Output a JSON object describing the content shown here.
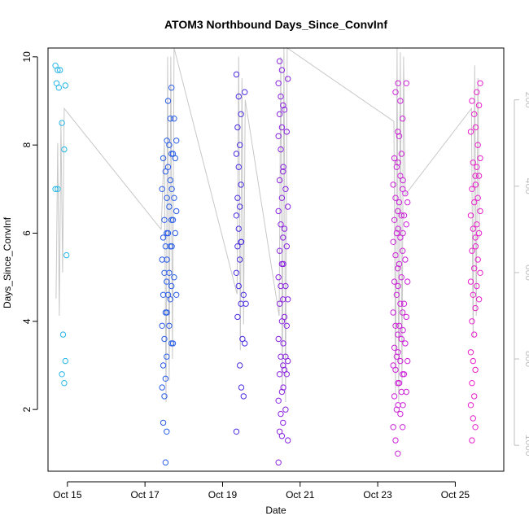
{
  "chart_data": {
    "type": "scatter",
    "title": "ATOM3 Northbound Days_Since_ConvInf",
    "xlabel": "Date",
    "ylabel": "Days_Since_ConvInf",
    "x_ticks": [
      "Oct 15",
      "Oct 17",
      "Oct 19",
      "Oct 21",
      "Oct 23",
      "Oct 25"
    ],
    "y_ticks": [
      2,
      4,
      6,
      8,
      10
    ],
    "y2_ticks": [
      200,
      400,
      600,
      800,
      1000
    ],
    "xlim": [
      "2019-10-14T12:00",
      "2019-10-26T06:00"
    ],
    "ylim": [
      0.6,
      10.2
    ],
    "y2lim": [
      80,
      1060
    ],
    "y2_reversed": true,
    "grid": false,
    "point_colors": {
      "Oct 14-15": "#29b6e8",
      "Oct 17-18": "#2a5de8",
      "Oct 19": "#4a2de0",
      "Oct 20-21": "#8a22e0",
      "Oct 23-24": "#cc22d8",
      "Oct 25-26": "#e822cc"
    },
    "line_color": "#c8c8c8",
    "series": [
      {
        "x": "2019-10-14T18:00",
        "y": [
          9.8,
          9.7,
          9.7,
          9.4,
          9.3,
          7.0,
          7.0
        ]
      },
      {
        "x": "2019-10-14T22:00",
        "y": [
          9.35,
          8.5,
          7.9,
          5.5,
          3.7,
          3.1,
          2.8,
          2.6
        ]
      },
      {
        "x": "2019-10-17T12:00",
        "y": [
          7.7,
          7.4,
          7.0,
          6.3,
          6.0,
          5.9,
          5.7,
          5.4,
          5.1,
          4.9,
          4.6,
          4.2,
          3.9,
          3.6,
          3.2,
          3.0,
          2.7,
          2.5,
          2.3,
          1.5,
          1.7,
          0.8
        ]
      },
      {
        "x": "2019-10-17T15:00",
        "y": [
          9.3,
          9.0,
          8.6,
          8.1,
          8.0,
          7.8,
          7.5,
          7.2,
          6.8,
          6.6,
          6.3,
          6.0,
          5.7,
          5.4,
          5.1,
          4.8,
          4.6,
          4.5,
          4.2,
          3.9,
          3.5
        ]
      },
      {
        "x": "2019-10-17T18:00",
        "y": [
          8.6,
          8.1,
          7.8,
          7.7,
          7.0,
          6.8,
          6.5,
          6.3,
          6.0,
          5.7,
          5.0,
          4.6,
          3.5
        ]
      },
      {
        "x": "2019-10-19T10:00",
        "y": [
          9.6,
          9.1,
          8.7,
          8.4,
          8.0,
          7.8,
          7.5,
          7.1,
          6.8,
          6.6,
          6.4,
          6.1,
          5.8,
          5.7,
          5.4,
          5.1,
          4.8,
          4.4,
          4.1,
          3.0,
          1.5
        ]
      },
      {
        "x": "2019-10-19T13:00",
        "y": [
          9.2,
          5.8,
          4.6,
          4.4,
          3.6,
          3.5,
          2.5,
          2.3
        ]
      },
      {
        "x": "2019-10-20T12:00",
        "y": [
          9.9,
          9.7,
          9.4,
          9.1,
          8.9,
          8.7,
          8.4,
          8.2,
          7.9,
          7.4,
          7.2,
          6.8,
          6.5,
          6.2,
          5.9,
          5.6,
          5.3,
          5.0,
          4.8,
          4.5,
          4.4,
          4.0,
          3.6,
          3.2,
          3.0,
          2.8,
          2.4,
          2.2,
          1.9,
          1.7,
          1.5,
          1.4,
          0.8
        ]
      },
      {
        "x": "2019-10-20T15:00",
        "y": [
          9.5,
          8.8,
          8.3,
          7.5,
          7.0,
          6.6,
          6.1,
          5.7,
          5.3,
          4.8,
          4.5,
          4.1,
          3.9,
          3.5,
          3.2,
          3.1,
          2.9,
          2.8,
          2.5,
          2.0,
          1.3
        ]
      },
      {
        "x": "2019-10-23T11:00",
        "y": [
          9.2,
          8.3,
          7.7,
          7.5,
          7.1,
          6.8,
          6.5,
          6.3,
          6.0,
          5.8,
          5.5,
          5.2,
          4.9,
          4.6,
          4.2,
          3.9,
          3.7,
          3.4,
          3.2,
          3.0,
          2.9,
          2.6,
          2.3,
          2.0,
          1.6,
          1.3,
          1.0
        ]
      },
      {
        "x": "2019-10-23T14:00",
        "y": [
          9.4,
          9.0,
          8.6,
          8.2,
          7.8,
          7.6,
          7.3,
          7.0,
          6.7,
          6.4,
          6.1,
          5.9,
          5.6,
          5.3,
          5.0,
          4.8,
          4.4,
          4.2,
          3.9,
          3.6,
          3.3,
          3.1,
          2.8,
          2.6,
          2.4,
          2.1,
          1.9,
          1.6
        ]
      },
      {
        "x": "2019-10-23T17:00",
        "y": [
          9.4,
          7.2,
          6.9,
          6.7,
          6.4,
          6.2,
          6.0,
          5.4,
          4.9,
          4.4,
          4.1,
          3.8,
          3.5,
          3.1,
          2.8,
          2.4,
          2.1
        ]
      },
      {
        "x": "2019-10-25T11:00",
        "y": [
          9.0,
          8.7,
          8.3,
          7.6,
          7.3,
          7.0,
          6.7,
          6.4,
          6.1,
          5.9,
          5.6,
          5.2,
          4.9,
          4.6,
          4.3,
          4.0,
          3.7,
          3.3,
          3.1,
          2.9,
          2.6,
          2.3,
          2.1,
          1.8,
          1.6,
          1.3
        ]
      },
      {
        "x": "2019-10-25T14:00",
        "y": [
          9.4,
          9.2,
          8.9,
          8.4,
          8.0,
          7.7,
          7.5,
          7.3,
          7.1,
          6.8,
          6.5,
          6.2,
          6.0,
          5.7,
          5.4,
          5.1,
          4.8,
          4.5
        ]
      }
    ],
    "depth_line": [
      {
        "x": "2019-10-14T17:00",
        "y2": 660
      },
      {
        "x": "2019-10-14T18:00",
        "y2": 300
      },
      {
        "x": "2019-10-14T19:00",
        "y2": 700
      },
      {
        "x": "2019-10-14T20:00",
        "y2": 250
      },
      {
        "x": "2019-10-14T21:00",
        "y2": 600
      },
      {
        "x": "2019-10-14T22:00",
        "y2": 220
      },
      {
        "x": "2019-10-17T10:00",
        "y2": 500
      },
      {
        "x": "2019-10-17T12:00",
        "y2": 300
      },
      {
        "x": "2019-10-17T13:00",
        "y2": 900
      },
      {
        "x": "2019-10-17T14:00",
        "y2": 100
      },
      {
        "x": "2019-10-17T15:00",
        "y2": 850
      },
      {
        "x": "2019-10-17T16:00",
        "y2": 100
      },
      {
        "x": "2019-10-17T17:00",
        "y2": 800
      },
      {
        "x": "2019-10-17T18:00",
        "y2": 80
      },
      {
        "x": "2019-10-19T09:00",
        "y2": 650
      },
      {
        "x": "2019-10-19T10:00",
        "y2": 100
      },
      {
        "x": "2019-10-19T11:00",
        "y2": 780
      },
      {
        "x": "2019-10-19T12:00",
        "y2": 150
      },
      {
        "x": "2019-10-19T13:00",
        "y2": 720
      },
      {
        "x": "2019-10-19T14:00",
        "y2": 200
      },
      {
        "x": "2019-10-20T11:00",
        "y2": 700
      },
      {
        "x": "2019-10-20T12:00",
        "y2": 100
      },
      {
        "x": "2019-10-20T13:00",
        "y2": 870
      },
      {
        "x": "2019-10-20T14:00",
        "y2": 80
      },
      {
        "x": "2019-10-20T15:00",
        "y2": 900
      },
      {
        "x": "2019-10-20T16:00",
        "y2": 80
      },
      {
        "x": "2019-10-23T10:00",
        "y2": 250
      },
      {
        "x": "2019-10-23T11:00",
        "y2": 880
      },
      {
        "x": "2019-10-23T12:00",
        "y2": 80
      },
      {
        "x": "2019-10-23T13:00",
        "y2": 900
      },
      {
        "x": "2019-10-23T14:00",
        "y2": 90
      },
      {
        "x": "2019-10-23T15:00",
        "y2": 860
      },
      {
        "x": "2019-10-23T16:00",
        "y2": 100
      },
      {
        "x": "2019-10-23T17:00",
        "y2": 420
      },
      {
        "x": "2019-10-25T10:00",
        "y2": 220
      },
      {
        "x": "2019-10-25T11:00",
        "y2": 750
      },
      {
        "x": "2019-10-25T12:00",
        "y2": 120
      },
      {
        "x": "2019-10-25T13:00",
        "y2": 700
      },
      {
        "x": "2019-10-25T14:00",
        "y2": 150
      },
      {
        "x": "2019-10-25T15:00",
        "y2": 520
      }
    ]
  }
}
